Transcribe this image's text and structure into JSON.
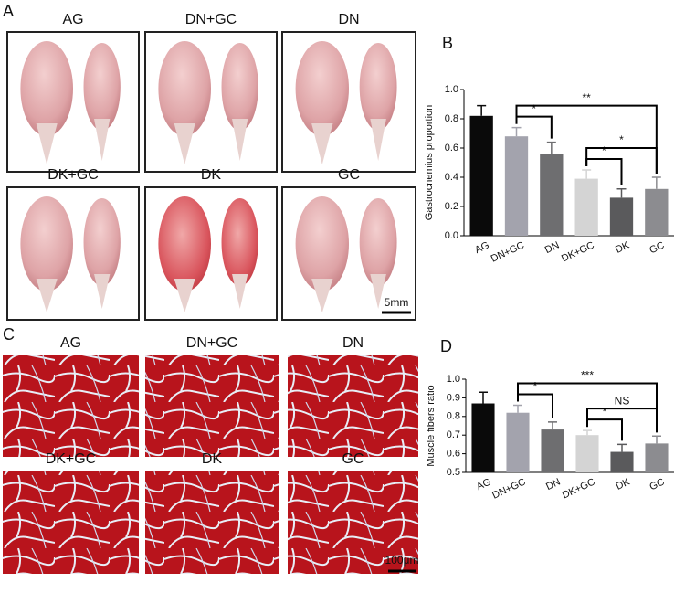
{
  "panel_a": {
    "label": "A",
    "photos": [
      "AG",
      "DN+GC",
      "DN",
      "DK+GC",
      "DK",
      "GC"
    ],
    "scale_bar": "5mm"
  },
  "panel_c": {
    "label": "C",
    "photos": [
      "AG",
      "DN+GC",
      "DN",
      "DK+GC",
      "DK",
      "GC"
    ],
    "scale_bar": "100μm"
  },
  "chart_data": [
    {
      "type": "bar",
      "panel_label": "B",
      "y_label": "Gastrocnemius proportion",
      "categories": [
        "AG",
        "DN+GC",
        "DN",
        "DK+GC",
        "DK",
        "GC"
      ],
      "values": [
        0.82,
        0.68,
        0.56,
        0.39,
        0.26,
        0.32
      ],
      "errors": [
        0.07,
        0.06,
        0.08,
        0.06,
        0.06,
        0.08
      ],
      "colors": [
        "#0a0a0a",
        "#a3a3ad",
        "#6e6e70",
        "#d4d4d4",
        "#5a5a5c",
        "#8c8c90"
      ],
      "ylim": [
        0,
        1.0
      ],
      "yticks": [
        {
          "value": 0,
          "label": "0.0"
        },
        0.2,
        0.4,
        0.6,
        0.8,
        {
          "value": 1.0,
          "label": "1.0"
        }
      ],
      "brackets": [
        {
          "between": [
            1,
            2
          ],
          "label": "*"
        },
        {
          "between": [
            3,
            4
          ],
          "label": "*"
        },
        {
          "between": [
            3,
            5
          ],
          "label": "*"
        },
        {
          "between": [
            1,
            5
          ],
          "label": "**"
        }
      ]
    },
    {
      "type": "bar",
      "panel_label": "D",
      "y_label": "Muscle fibers ratio",
      "categories": [
        "AG",
        "DN+GC",
        "DN",
        "DK+GC",
        "DK",
        "GC"
      ],
      "values": [
        0.87,
        0.82,
        0.73,
        0.7,
        0.61,
        0.655
      ],
      "errors": [
        0.06,
        0.04,
        0.04,
        0.025,
        0.04,
        0.04
      ],
      "colors": [
        "#0a0a0a",
        "#a3a3ad",
        "#6e6e70",
        "#d4d4d4",
        "#5a5a5c",
        "#8c8c90"
      ],
      "ylim": [
        0.5,
        1.0
      ],
      "yticks": [
        0.5,
        0.6,
        0.7,
        0.8,
        0.9,
        {
          "value": 1.0,
          "label": "1.0"
        }
      ],
      "brackets": [
        {
          "between": [
            1,
            2
          ],
          "label": "*"
        },
        {
          "between": [
            3,
            4
          ],
          "label": "*"
        },
        {
          "between": [
            3,
            5
          ],
          "label": "NS"
        },
        {
          "between": [
            1,
            5
          ],
          "label": "***"
        }
      ]
    }
  ]
}
